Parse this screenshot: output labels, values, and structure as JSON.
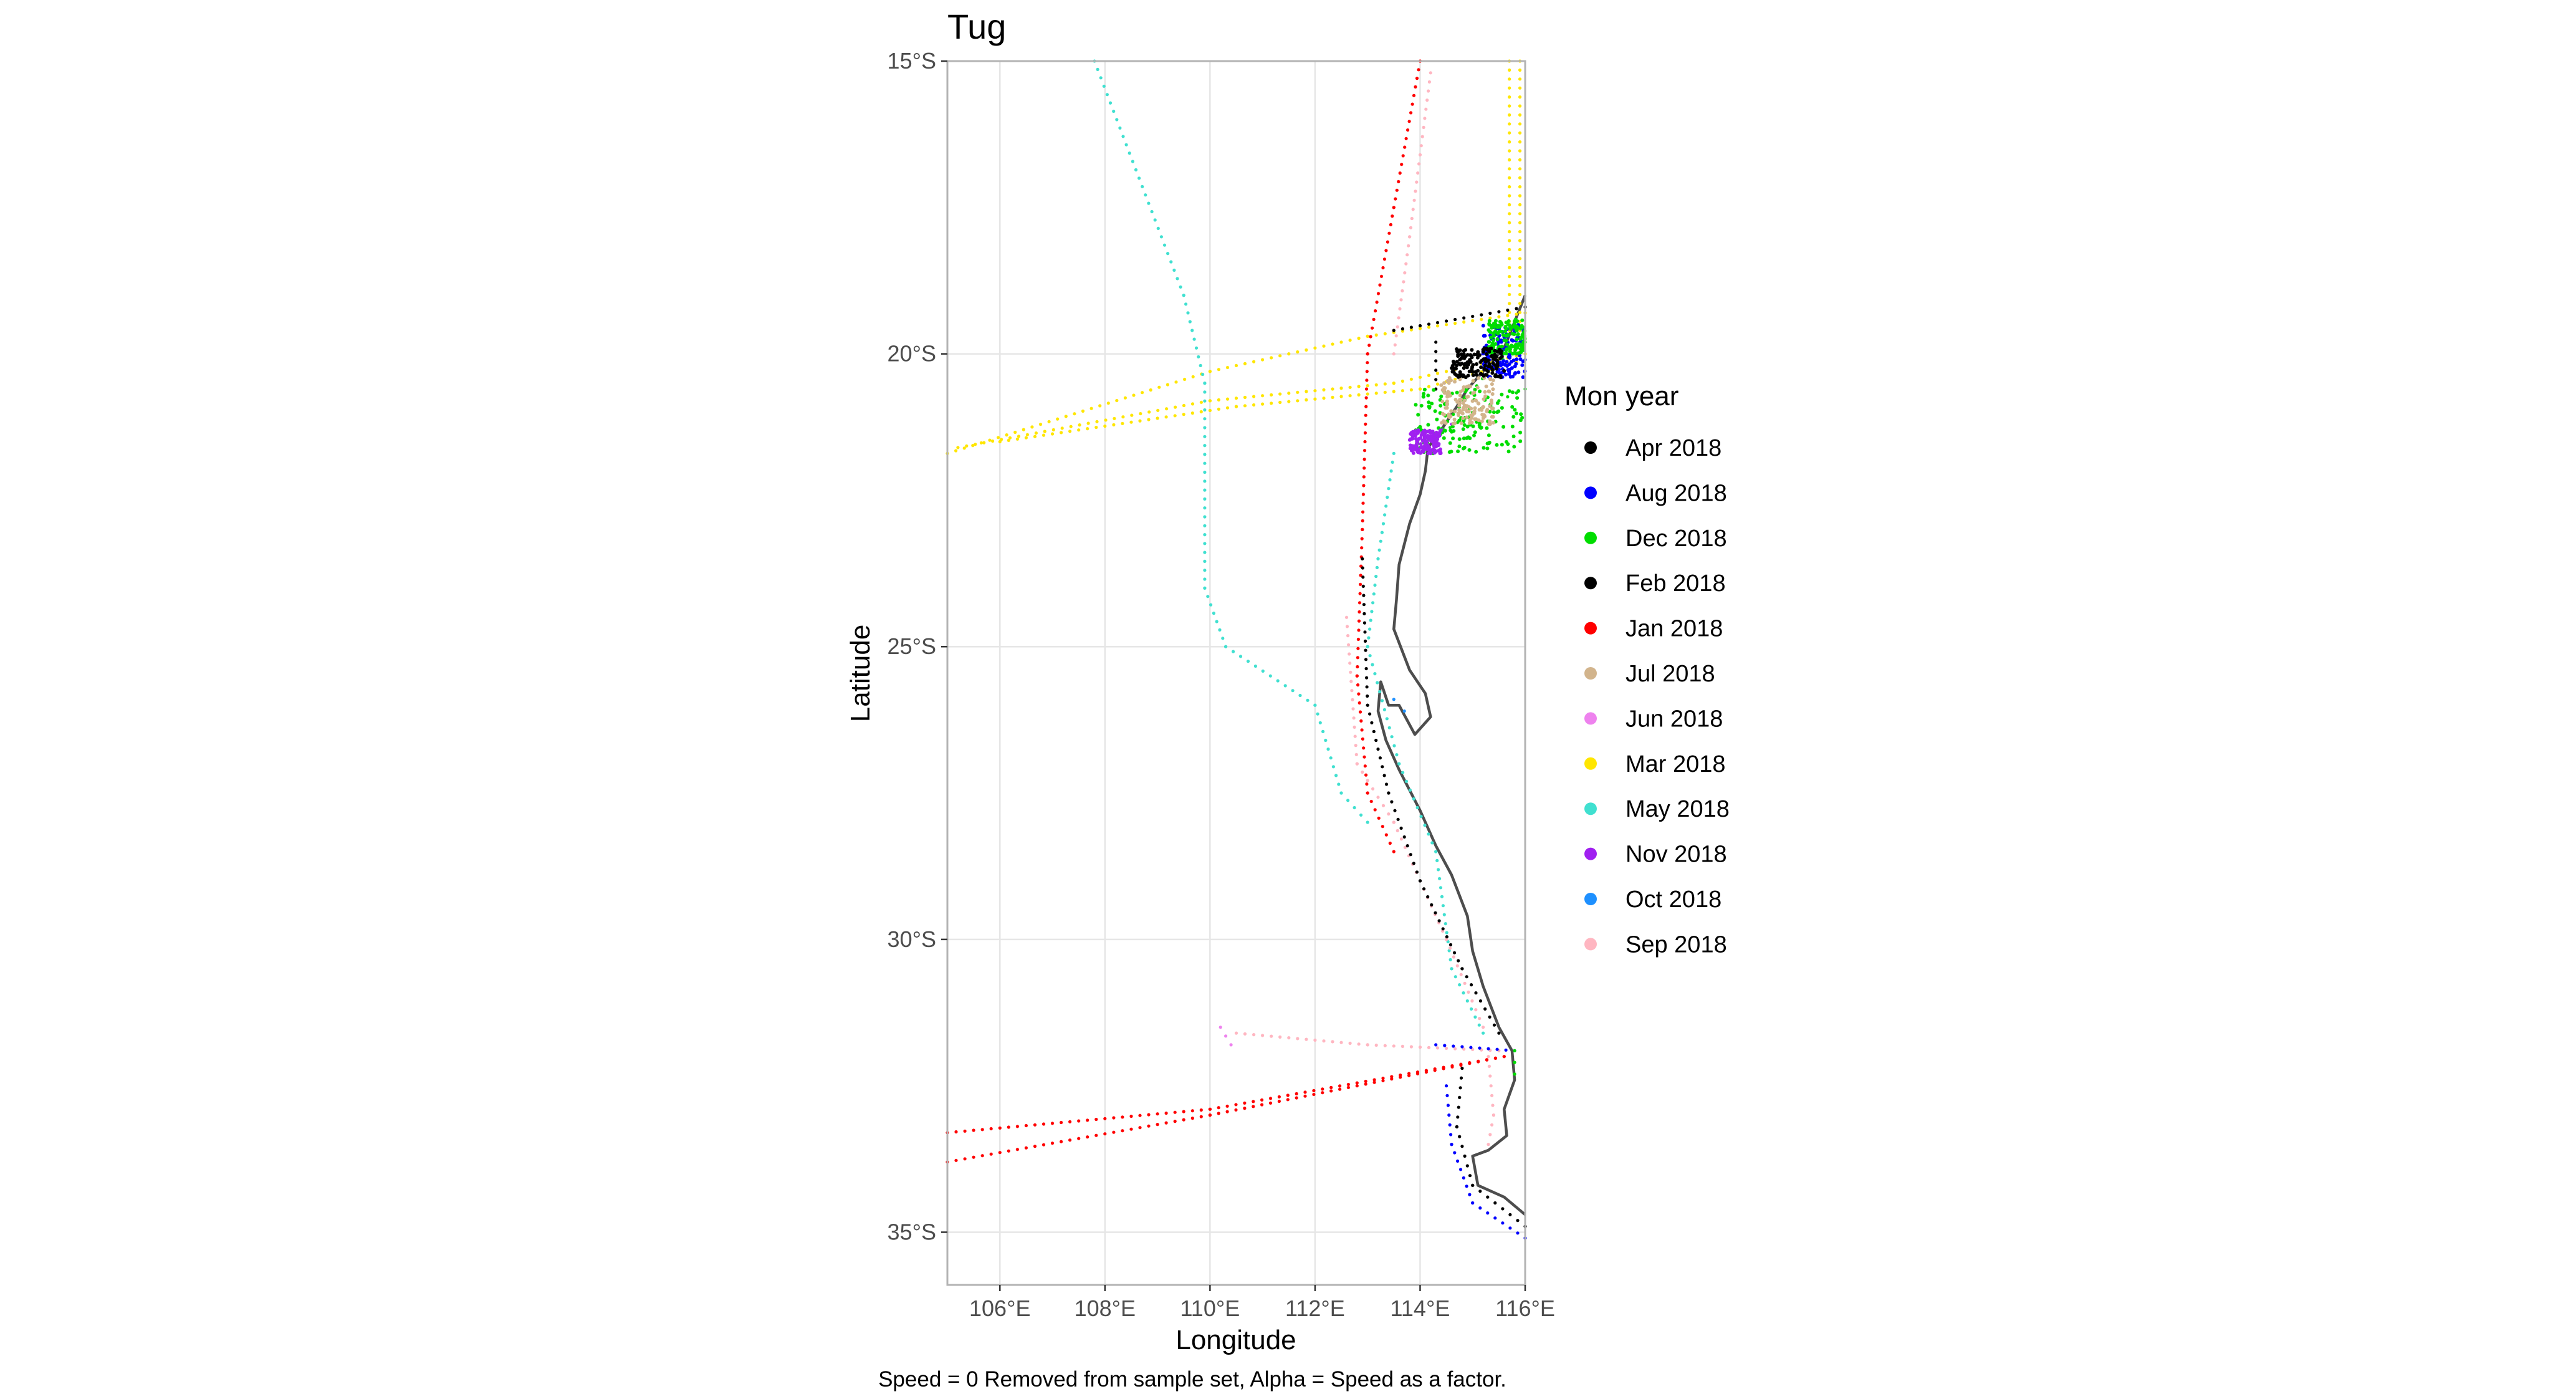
{
  "chart_data": {
    "type": "scatter",
    "title": "Tug",
    "xlabel": "Longitude",
    "ylabel": "Latitude",
    "caption": "Speed = 0 Removed from sample set, Alpha = Speed as a factor.",
    "xlim": [
      105,
      116
    ],
    "ylim": [
      -35.9,
      -15
    ],
    "x_ticks": [
      106,
      108,
      110,
      112,
      114,
      116
    ],
    "x_tick_labels": [
      "106°E",
      "108°E",
      "110°E",
      "112°E",
      "114°E",
      "116°E"
    ],
    "y_ticks": [
      -15,
      -20,
      -25,
      -30,
      -35
    ],
    "y_tick_labels": [
      "15°S",
      "20°S",
      "25°S",
      "30°S",
      "35°S"
    ],
    "grid": true,
    "legend": {
      "title": "Mon year",
      "position": "right",
      "entries": [
        {
          "label": "Apr 2018",
          "color": "#000000"
        },
        {
          "label": "Aug 2018",
          "color": "#0000ff"
        },
        {
          "label": "Dec 2018",
          "color": "#00dd00"
        },
        {
          "label": "Feb 2018",
          "color": "#000000"
        },
        {
          "label": "Jan 2018",
          "color": "#ff0000"
        },
        {
          "label": "Jul 2018",
          "color": "#d2b48c"
        },
        {
          "label": "Jun 2018",
          "color": "#ee82ee"
        },
        {
          "label": "Mar 2018",
          "color": "#ffe600"
        },
        {
          "label": "May 2018",
          "color": "#40e0d0"
        },
        {
          "label": "Nov 2018",
          "color": "#a020f0"
        },
        {
          "label": "Oct 2018",
          "color": "#1e90ff"
        },
        {
          "label": "Sep 2018",
          "color": "#ffb6c1"
        }
      ]
    },
    "coastline": [
      [
        116.0,
        -19.0
      ],
      [
        115.6,
        -19.9
      ],
      [
        115.2,
        -20.3
      ],
      [
        114.9,
        -20.6
      ],
      [
        114.7,
        -20.9
      ],
      [
        114.4,
        -21.3
      ],
      [
        114.15,
        -21.6
      ],
      [
        114.1,
        -22.0
      ],
      [
        114.0,
        -22.4
      ],
      [
        113.8,
        -22.9
      ],
      [
        113.6,
        -23.6
      ],
      [
        113.55,
        -24.2
      ],
      [
        113.5,
        -24.7
      ],
      [
        113.8,
        -25.4
      ],
      [
        114.1,
        -25.8
      ],
      [
        114.2,
        -26.2
      ],
      [
        113.9,
        -26.5
      ],
      [
        113.6,
        -26.0
      ],
      [
        113.4,
        -26.0
      ],
      [
        113.25,
        -25.6
      ],
      [
        113.2,
        -26.1
      ],
      [
        113.35,
        -26.6
      ],
      [
        113.6,
        -27.1
      ],
      [
        114.0,
        -27.8
      ],
      [
        114.3,
        -28.4
      ],
      [
        114.6,
        -28.9
      ],
      [
        114.9,
        -29.6
      ],
      [
        115.0,
        -30.2
      ],
      [
        115.2,
        -30.8
      ],
      [
        115.5,
        -31.5
      ],
      [
        115.75,
        -31.9
      ],
      [
        115.8,
        -32.4
      ],
      [
        115.6,
        -32.9
      ],
      [
        115.65,
        -33.35
      ],
      [
        115.3,
        -33.6
      ],
      [
        115.0,
        -33.7
      ],
      [
        115.1,
        -34.2
      ],
      [
        115.6,
        -34.4
      ],
      [
        116.0,
        -34.7
      ]
    ],
    "tracks": [
      {
        "series": "Mar 2018",
        "points": [
          [
            105.0,
            -21.7
          ],
          [
            110.0,
            -20.3
          ],
          [
            113.0,
            -19.7
          ],
          [
            116.0,
            -19.3
          ]
        ]
      },
      {
        "series": "Mar 2018",
        "points": [
          [
            105.2,
            -21.6
          ],
          [
            110.0,
            -20.8
          ],
          [
            113.5,
            -20.5
          ],
          [
            116.0,
            -20.0
          ]
        ]
      },
      {
        "series": "Mar 2018",
        "points": [
          [
            106.0,
            -21.5
          ],
          [
            110.5,
            -20.9
          ],
          [
            114.0,
            -20.6
          ],
          [
            116.0,
            -20.1
          ]
        ]
      },
      {
        "series": "Mar 2018",
        "points": [
          [
            115.7,
            -15.0
          ],
          [
            115.7,
            -19.6
          ]
        ]
      },
      {
        "series": "Mar 2018",
        "points": [
          [
            115.9,
            -15.0
          ],
          [
            115.9,
            -19.6
          ]
        ]
      },
      {
        "series": "May 2018",
        "points": [
          [
            107.8,
            -15.0
          ],
          [
            109.5,
            -19.0
          ],
          [
            109.9,
            -20.5
          ],
          [
            109.9,
            -24.0
          ],
          [
            110.3,
            -25.0
          ],
          [
            112.0,
            -26.0
          ],
          [
            112.5,
            -27.5
          ],
          [
            113.0,
            -28.0
          ]
        ]
      },
      {
        "series": "May 2018",
        "points": [
          [
            113.5,
            -21.7
          ],
          [
            113.2,
            -23.5
          ],
          [
            113.0,
            -25.0
          ],
          [
            113.6,
            -27.0
          ],
          [
            114.3,
            -28.5
          ],
          [
            114.6,
            -30.5
          ],
          [
            115.2,
            -31.6
          ]
        ]
      },
      {
        "series": "Jan 2018",
        "points": [
          [
            114.0,
            -15.0
          ],
          [
            113.5,
            -17.5
          ],
          [
            113.0,
            -20.0
          ],
          [
            112.9,
            -23.0
          ],
          [
            112.8,
            -25.5
          ],
          [
            113.0,
            -27.5
          ],
          [
            113.5,
            -28.5
          ]
        ]
      },
      {
        "series": "Jan 2018",
        "points": [
          [
            105.0,
            -33.3
          ],
          [
            110.0,
            -32.9
          ],
          [
            115.6,
            -32.0
          ]
        ]
      },
      {
        "series": "Jan 2018",
        "points": [
          [
            105.0,
            -33.8
          ],
          [
            110.0,
            -33.0
          ],
          [
            115.6,
            -32.0
          ]
        ]
      },
      {
        "series": "Sep 2018",
        "points": [
          [
            114.2,
            -15.2
          ],
          [
            113.8,
            -18.0
          ],
          [
            113.5,
            -20.0
          ]
        ]
      },
      {
        "series": "Sep 2018",
        "points": [
          [
            112.6,
            -24.5
          ],
          [
            112.8,
            -27.0
          ],
          [
            113.5,
            -28.0
          ],
          [
            114.5,
            -30.0
          ],
          [
            115.2,
            -31.5
          ]
        ]
      },
      {
        "series": "Sep 2018",
        "points": [
          [
            110.5,
            -31.6
          ],
          [
            113.0,
            -31.8
          ],
          [
            115.5,
            -31.9
          ]
        ]
      },
      {
        "series": "Sep 2018",
        "points": [
          [
            115.3,
            -32.0
          ],
          [
            115.4,
            -33.0
          ],
          [
            115.3,
            -33.5
          ]
        ]
      },
      {
        "series": "Feb 2018",
        "points": [
          [
            113.5,
            -19.6
          ],
          [
            116.0,
            -19.2
          ]
        ]
      },
      {
        "series": "Feb 2018",
        "points": [
          [
            114.3,
            -19.8
          ],
          [
            114.3,
            -20.6
          ]
        ]
      },
      {
        "series": "Apr 2018",
        "points": [
          [
            112.9,
            -23.5
          ],
          [
            113.0,
            -26.0
          ],
          [
            113.4,
            -27.5
          ],
          [
            114.0,
            -29.0
          ],
          [
            114.8,
            -30.5
          ],
          [
            115.5,
            -31.6
          ]
        ]
      },
      {
        "series": "Apr 2018",
        "points": [
          [
            114.8,
            -32.2
          ],
          [
            114.7,
            -33.2
          ],
          [
            115.0,
            -34.2
          ],
          [
            116.0,
            -34.9
          ]
        ]
      },
      {
        "series": "Aug 2018",
        "points": [
          [
            114.3,
            -31.8
          ],
          [
            115.8,
            -31.9
          ]
        ]
      },
      {
        "series": "Aug 2018",
        "points": [
          [
            114.5,
            -32.5
          ],
          [
            114.6,
            -33.5
          ],
          [
            115.0,
            -34.5
          ],
          [
            116.0,
            -35.1
          ]
        ]
      },
      {
        "series": "Aug 2018",
        "points": [
          [
            115.5,
            -19.8
          ],
          [
            116.0,
            -20.1
          ]
        ]
      },
      {
        "series": "Dec 2018",
        "points": [
          [
            114.0,
            -21.6
          ],
          [
            115.0,
            -21.0
          ],
          [
            116.0,
            -20.6
          ]
        ]
      },
      {
        "series": "Dec 2018",
        "points": [
          [
            114.3,
            -21.4
          ],
          [
            115.3,
            -20.3
          ],
          [
            116.0,
            -19.8
          ]
        ]
      },
      {
        "series": "Dec 2018",
        "points": [
          [
            115.8,
            -31.9
          ],
          [
            115.8,
            -32.3
          ]
        ]
      },
      {
        "series": "Nov 2018",
        "points": [
          [
            113.9,
            -21.6
          ],
          [
            114.6,
            -21.2
          ]
        ]
      },
      {
        "series": "Jun 2018",
        "points": [
          [
            110.2,
            -31.5
          ],
          [
            110.4,
            -31.8
          ]
        ]
      },
      {
        "series": "Oct 2018",
        "points": [
          [
            113.5,
            -25.9
          ],
          [
            113.7,
            -26.1
          ]
        ]
      }
    ],
    "clusters": [
      {
        "series": "Dec 2018",
        "x": [
          113.9,
          116.0
        ],
        "y": [
          -21.7,
          -20.6
        ]
      },
      {
        "series": "Aug 2018",
        "x": [
          115.2,
          116.0
        ],
        "y": [
          -20.4,
          -19.5
        ]
      },
      {
        "series": "Nov 2018",
        "x": [
          113.8,
          114.4
        ],
        "y": [
          -21.7,
          -21.3
        ]
      },
      {
        "series": "Dec 2018",
        "x": [
          115.3,
          116.0
        ],
        "y": [
          -20.0,
          -19.4
        ]
      },
      {
        "series": "Jul 2018",
        "x": [
          114.4,
          115.4
        ],
        "y": [
          -21.2,
          -20.4
        ]
      },
      {
        "series": "Apr 2018",
        "x": [
          114.6,
          115.6
        ],
        "y": [
          -20.4,
          -19.9
        ]
      }
    ]
  }
}
